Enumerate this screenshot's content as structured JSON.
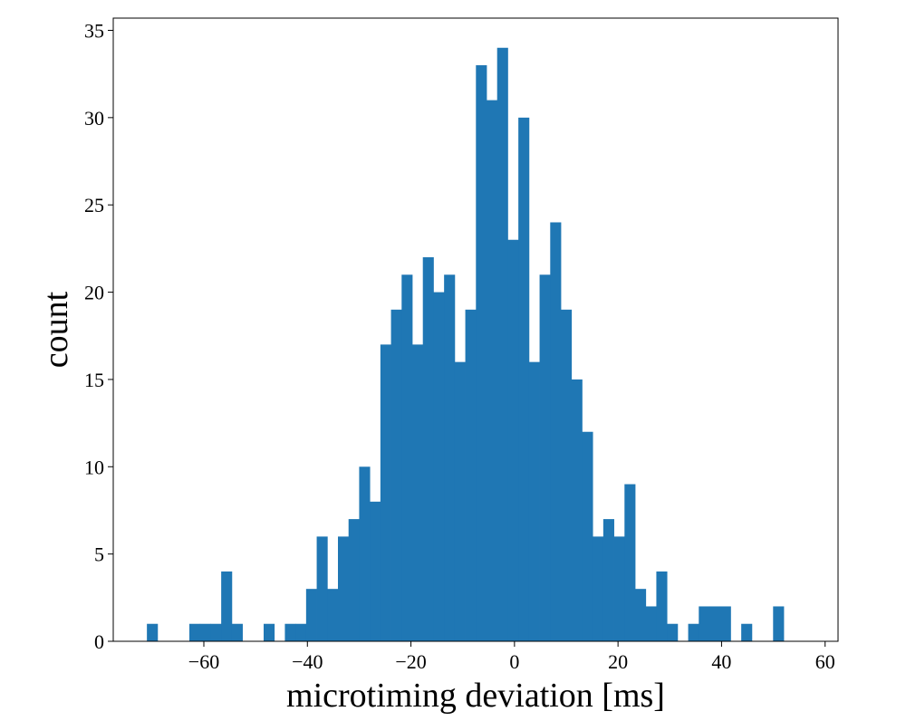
{
  "chart_data": {
    "type": "bar",
    "title": "",
    "xlabel": "microtiming deviation [ms]",
    "ylabel": "count",
    "xlim": [
      -77.5,
      62.5
    ],
    "ylim": [
      0,
      35.7
    ],
    "x_ticks": [
      -60,
      -40,
      -20,
      0,
      20,
      40,
      60
    ],
    "x_tick_labels": [
      "−60",
      "−40",
      "−20",
      "0",
      "20",
      "40",
      "60"
    ],
    "y_ticks": [
      0,
      5,
      10,
      15,
      20,
      25,
      30,
      35
    ],
    "y_tick_labels": [
      "0",
      "5",
      "10",
      "15",
      "20",
      "25",
      "30",
      "35"
    ],
    "grid": false,
    "bar_color": "#1f77b4",
    "bin_width": 2.05,
    "bin_start": -71.0,
    "values": [
      1,
      0,
      0,
      0,
      1,
      1,
      1,
      4,
      1,
      0,
      0,
      1,
      0,
      1,
      1,
      3,
      6,
      3,
      6,
      7,
      10,
      8,
      17,
      19,
      21,
      17,
      22,
      20,
      21,
      16,
      19,
      33,
      31,
      34,
      23,
      30,
      16,
      21,
      24,
      19,
      15,
      12,
      6,
      7,
      6,
      9,
      3,
      2,
      4,
      1,
      0,
      1,
      2,
      2,
      2,
      0,
      1,
      0,
      0,
      2
    ]
  }
}
